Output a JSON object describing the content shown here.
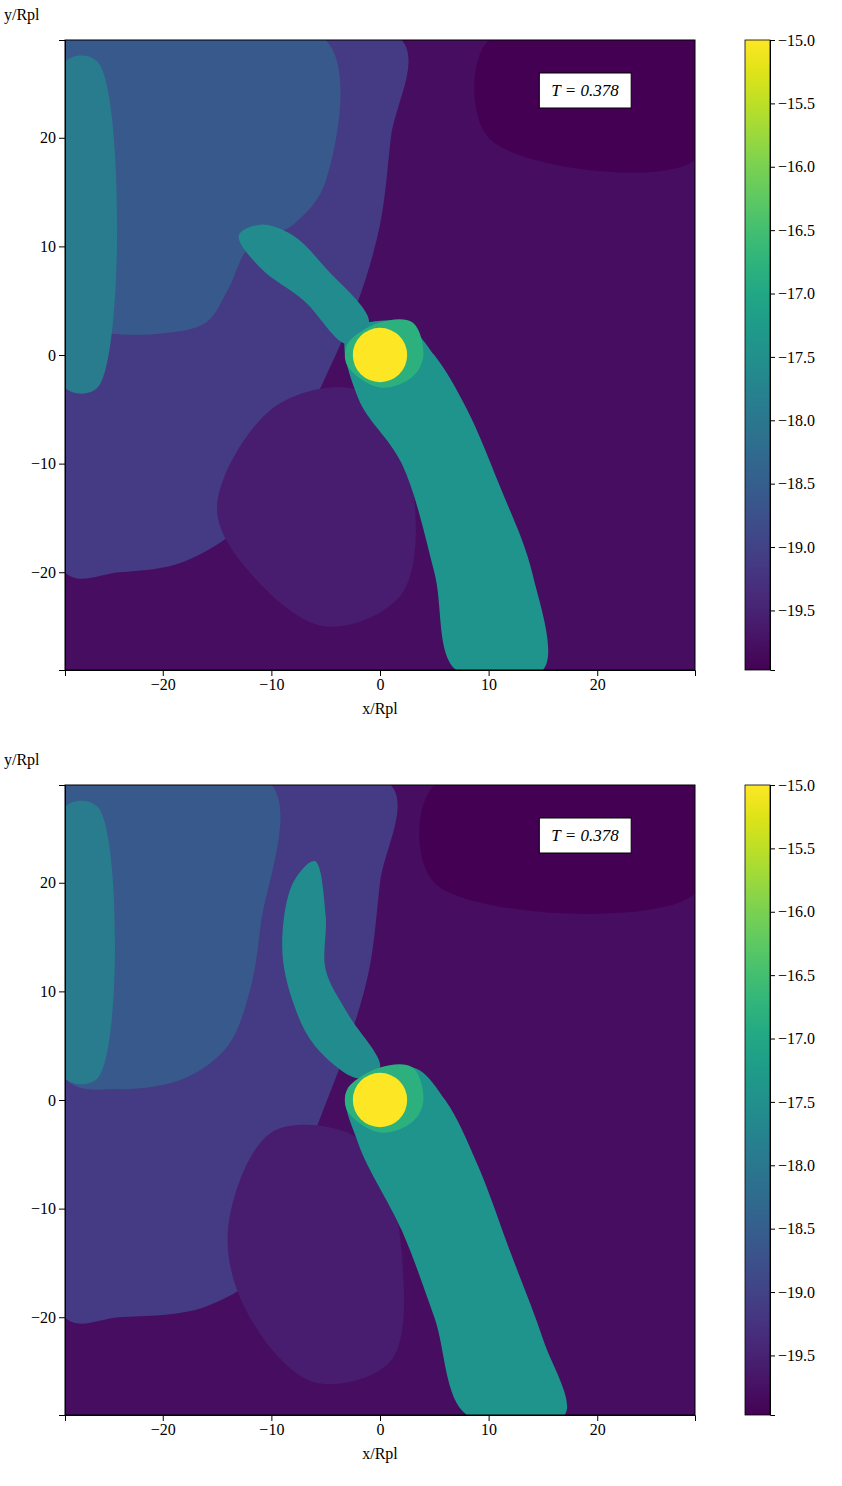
{
  "chart_data": [
    {
      "type": "heatmap",
      "title": "T = 0.378",
      "x_label": "x/Rpl",
      "y_label": "y/Rpl",
      "xlim": [
        -29,
        29
      ],
      "ylim": [
        -29,
        29
      ],
      "xticks": [
        {
          "value": -20,
          "label": "−20"
        },
        {
          "value": -10,
          "label": "−10"
        },
        0,
        10,
        20
      ],
      "yticks": [
        {
          "value": -20,
          "label": "−20"
        },
        {
          "value": -10,
          "label": "−10"
        },
        0,
        10,
        20
      ],
      "colorbar": {
        "range": [
          -19.97,
          -15.0
        ],
        "ticks": [
          {
            "value": -15.0,
            "label": "−15.0"
          },
          {
            "value": -15.5,
            "label": "−15.5"
          },
          {
            "value": -16.0,
            "label": "−16.0"
          },
          {
            "value": -16.5,
            "label": "−16.5"
          },
          {
            "value": -17.0,
            "label": "−17.0"
          },
          {
            "value": -17.5,
            "label": "−17.5"
          },
          {
            "value": -18.0,
            "label": "−18.0"
          },
          {
            "value": -18.5,
            "label": "−18.5"
          },
          {
            "value": -19.0,
            "label": "−19.0"
          },
          {
            "value": -19.5,
            "label": "−19.5"
          }
        ]
      },
      "background": -19.8,
      "regions": [
        {
          "value": -19.97,
          "points": [
            [
              10,
              29
            ],
            [
              29,
              29
            ],
            [
              29,
              18
            ],
            [
              10,
              20
            ]
          ]
        },
        {
          "value": -19.1,
          "points": [
            [
              -29,
              29
            ],
            [
              2,
              29
            ],
            [
              1,
              20
            ],
            [
              0,
              12
            ],
            [
              -2,
              5
            ],
            [
              -5,
              -2
            ],
            [
              -8,
              -8
            ],
            [
              -12,
              -15
            ],
            [
              -18,
              -19
            ],
            [
              -24,
              -20
            ],
            [
              -29,
              -20
            ]
          ]
        },
        {
          "value": -18.6,
          "points": [
            [
              -29,
              29
            ],
            [
              -5,
              29
            ],
            [
              -5,
              16
            ],
            [
              -8,
              12
            ],
            [
              -12,
              10
            ],
            [
              -14,
              6
            ],
            [
              -16,
              3
            ],
            [
              -20,
              2
            ],
            [
              -25,
              2
            ],
            [
              -29,
              3
            ]
          ]
        },
        {
          "value": -17.9,
          "points": [
            [
              -29,
              -3
            ],
            [
              -26,
              -3
            ],
            [
              -26,
              27
            ],
            [
              -29,
              27
            ]
          ]
        },
        {
          "value": -19.6,
          "points": [
            [
              -10,
              -5
            ],
            [
              -3,
              -3
            ],
            [
              0,
              -5
            ],
            [
              3,
              -12
            ],
            [
              2,
              -22
            ],
            [
              -5,
              -25
            ],
            [
              -12,
              -20
            ],
            [
              -15,
              -14
            ]
          ]
        },
        {
          "value": -17.4,
          "points": [
            [
              -3,
              2
            ],
            [
              2,
              3
            ],
            [
              5,
              0
            ],
            [
              8,
              -5
            ],
            [
              11,
              -12
            ],
            [
              14,
              -20
            ],
            [
              15,
              -29
            ],
            [
              7,
              -29
            ],
            [
              5,
              -20
            ],
            [
              2,
              -10
            ],
            [
              -2,
              -4
            ]
          ]
        },
        {
          "value": -17.6,
          "points": [
            [
              -3,
              1
            ],
            [
              -7,
              5
            ],
            [
              -11,
              8
            ],
            [
              -13,
              11
            ],
            [
              -11,
              12
            ],
            [
              -8,
              11
            ],
            [
              -5,
              8
            ],
            [
              -1,
              3
            ]
          ]
        },
        {
          "value": -16.8,
          "points": [
            [
              -3,
              1
            ],
            [
              0,
              3
            ],
            [
              3,
              3
            ],
            [
              4,
              0
            ],
            [
              3,
              -2
            ],
            [
              0,
              -3
            ],
            [
              -3,
              -1
            ]
          ]
        }
      ],
      "planet": {
        "x": 0,
        "y": 0,
        "radius": 2.5,
        "value": -15.0
      }
    },
    {
      "type": "heatmap",
      "title": "T = 0.378",
      "x_label": "x/Rpl",
      "y_label": "y/Rpl",
      "xlim": [
        -29,
        29
      ],
      "ylim": [
        -29,
        29
      ],
      "xticks": [
        {
          "value": -20,
          "label": "−20"
        },
        {
          "value": -10,
          "label": "−10"
        },
        0,
        10,
        20
      ],
      "yticks": [
        {
          "value": -20,
          "label": "−20"
        },
        {
          "value": -10,
          "label": "−10"
        },
        0,
        10,
        20
      ],
      "colorbar": {
        "range": [
          -19.97,
          -15.0
        ],
        "ticks": [
          {
            "value": -15.0,
            "label": "−15.0"
          },
          {
            "value": -15.5,
            "label": "−15.5"
          },
          {
            "value": -16.0,
            "label": "−16.0"
          },
          {
            "value": -16.5,
            "label": "−16.5"
          },
          {
            "value": -17.0,
            "label": "−17.0"
          },
          {
            "value": -17.5,
            "label": "−17.5"
          },
          {
            "value": -18.0,
            "label": "−18.0"
          },
          {
            "value": -18.5,
            "label": "−18.5"
          },
          {
            "value": -19.0,
            "label": "−19.0"
          },
          {
            "value": -19.5,
            "label": "−19.5"
          }
        ]
      },
      "background": -19.8,
      "regions": [
        {
          "value": -19.97,
          "points": [
            [
              5,
              29
            ],
            [
              29,
              29
            ],
            [
              29,
              19
            ],
            [
              5,
              20
            ]
          ]
        },
        {
          "value": -19.1,
          "points": [
            [
              -29,
              29
            ],
            [
              1,
              29
            ],
            [
              0,
              20
            ],
            [
              -1,
              12
            ],
            [
              -3,
              5
            ],
            [
              -6,
              -3
            ],
            [
              -8,
              -9
            ],
            [
              -10,
              -15
            ],
            [
              -16,
              -19
            ],
            [
              -24,
              -20
            ],
            [
              -29,
              -20
            ]
          ]
        },
        {
          "value": -18.6,
          "points": [
            [
              -29,
              29
            ],
            [
              -10,
              29
            ],
            [
              -11,
              16
            ],
            [
              -12,
              10
            ],
            [
              -14,
              5
            ],
            [
              -18,
              2
            ],
            [
              -24,
              1
            ],
            [
              -29,
              2
            ]
          ]
        },
        {
          "value": -17.9,
          "points": [
            [
              -29,
              2
            ],
            [
              -26,
              2
            ],
            [
              -26,
              27
            ],
            [
              -29,
              27
            ]
          ]
        },
        {
          "value": -19.6,
          "points": [
            [
              -10,
              -3
            ],
            [
              -3,
              -3
            ],
            [
              0,
              -6
            ],
            [
              2,
              -14
            ],
            [
              1,
              -24
            ],
            [
              -6,
              -26
            ],
            [
              -12,
              -20
            ],
            [
              -14,
              -12
            ]
          ]
        },
        {
          "value": -17.4,
          "points": [
            [
              -3,
              1
            ],
            [
              3,
              3
            ],
            [
              6,
              0
            ],
            [
              9,
              -6
            ],
            [
              12,
              -14
            ],
            [
              15,
              -22
            ],
            [
              17,
              -29
            ],
            [
              8,
              -29
            ],
            [
              5,
              -20
            ],
            [
              2,
              -12
            ],
            [
              -2,
              -4
            ]
          ]
        },
        {
          "value": -17.6,
          "points": [
            [
              -2,
              2
            ],
            [
              -6,
              5
            ],
            [
              -8,
              9
            ],
            [
              -9,
              14
            ],
            [
              -8,
              20
            ],
            [
              -6,
              22
            ],
            [
              -5,
              17
            ],
            [
              -5,
              12
            ],
            [
              -3,
              8
            ],
            [
              0,
              3
            ]
          ]
        },
        {
          "value": -16.8,
          "points": [
            [
              -3,
              1
            ],
            [
              0,
              3
            ],
            [
              3,
              3
            ],
            [
              4,
              0
            ],
            [
              3,
              -2
            ],
            [
              0,
              -3
            ],
            [
              -3,
              -1
            ]
          ]
        }
      ],
      "planet": {
        "x": 0,
        "y": 0,
        "radius": 2.5,
        "value": -15.0
      }
    }
  ]
}
